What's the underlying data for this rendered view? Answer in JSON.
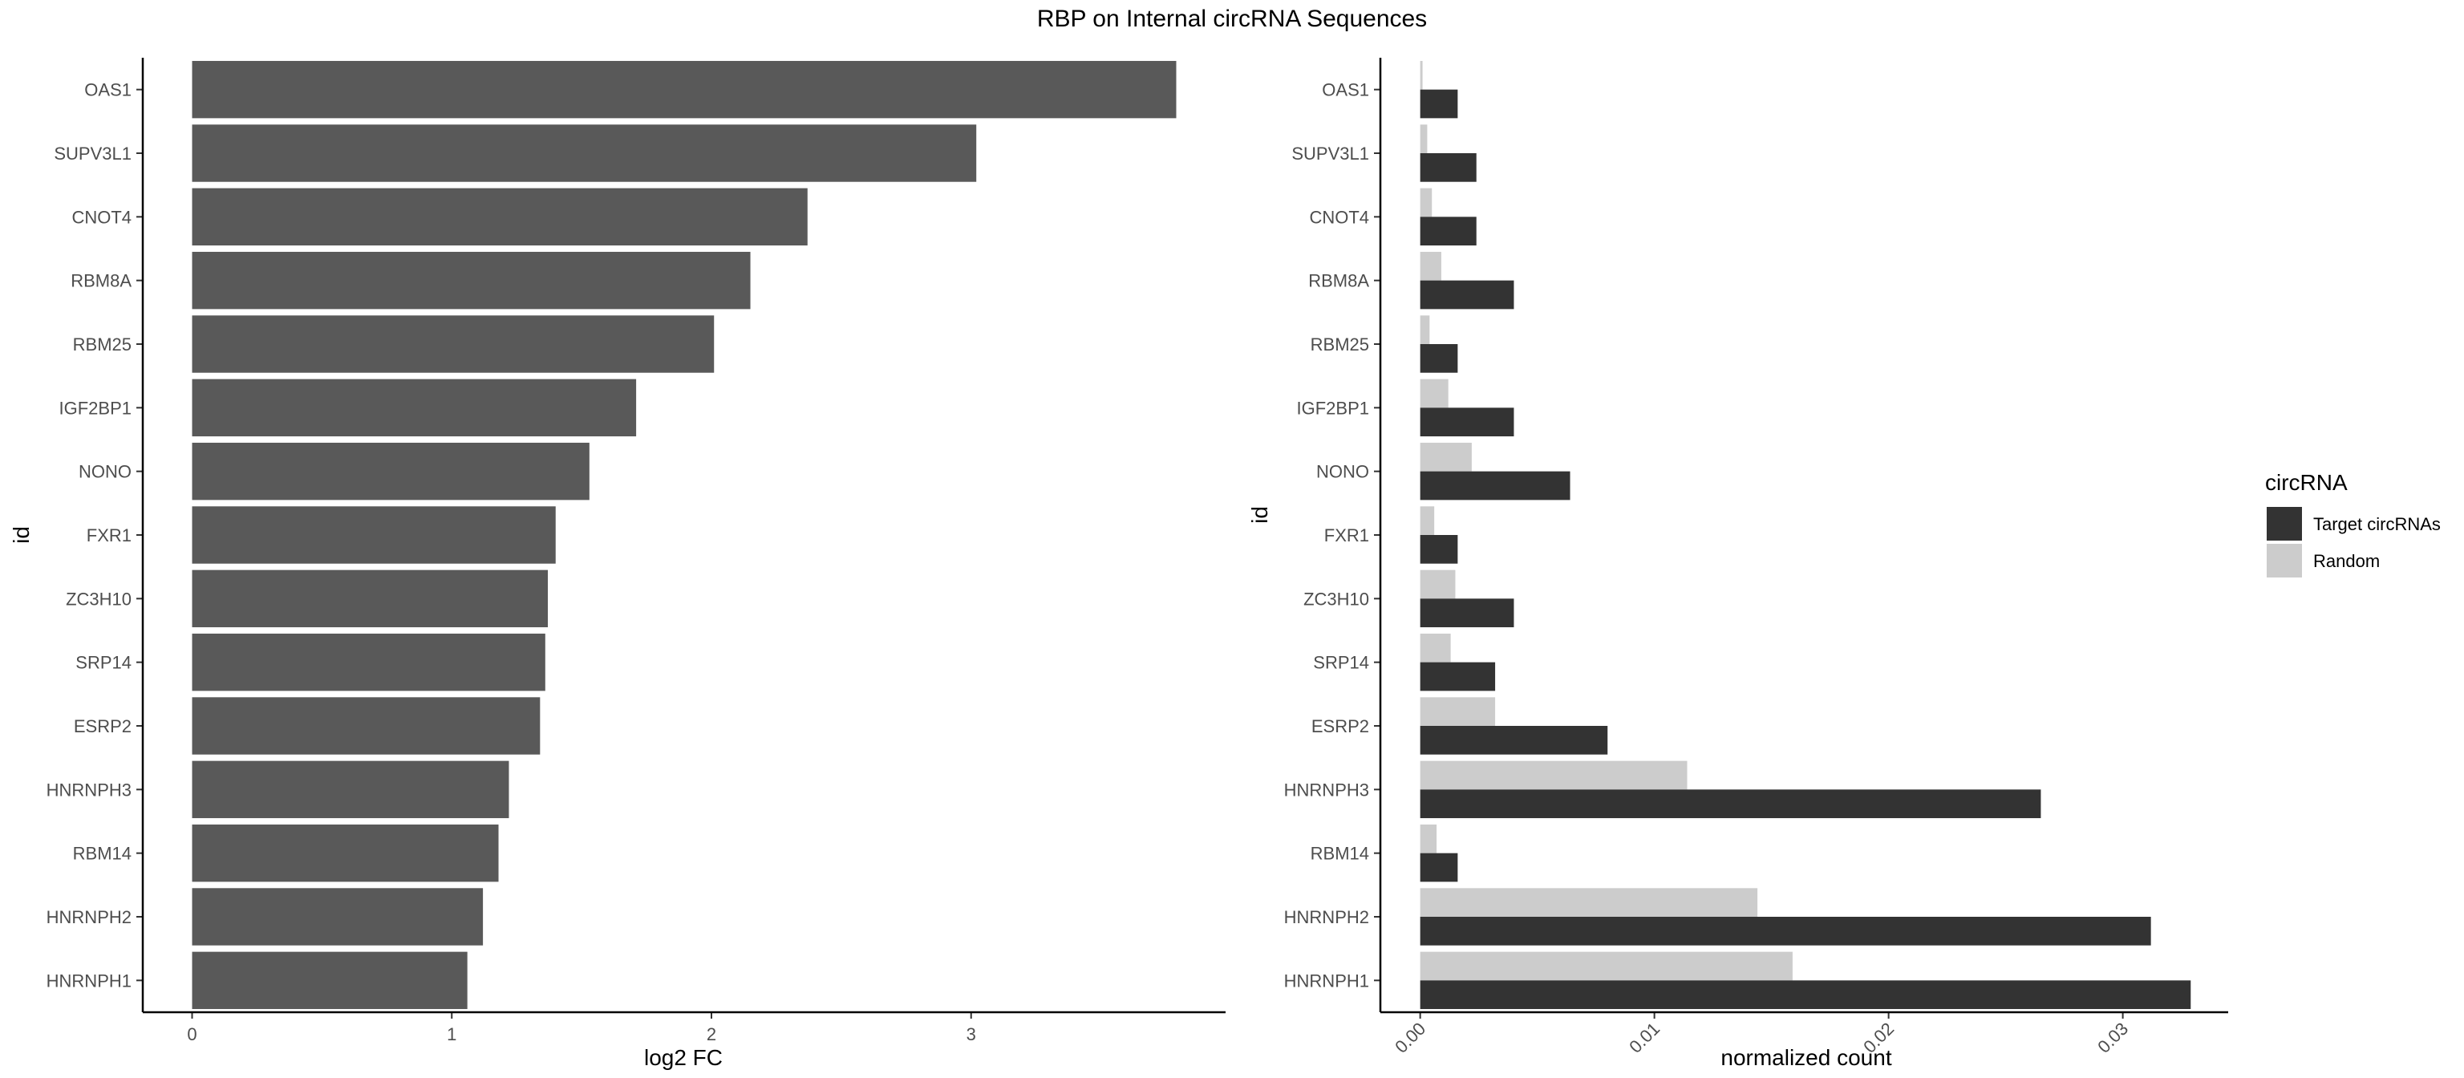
{
  "title": "RBP on Internal circRNA Sequences",
  "chart_data": [
    {
      "type": "bar",
      "orientation": "horizontal",
      "categories": [
        "OAS1",
        "SUPV3L1",
        "CNOT4",
        "RBM8A",
        "RBM25",
        "IGF2BP1",
        "NONO",
        "FXR1",
        "ZC3H10",
        "SRP14",
        "ESRP2",
        "HNRNPH3",
        "RBM14",
        "HNRNPH2",
        "HNRNPH1"
      ],
      "values": [
        3.79,
        3.02,
        2.37,
        2.15,
        2.01,
        1.71,
        1.53,
        1.4,
        1.37,
        1.36,
        1.34,
        1.22,
        1.18,
        1.12,
        1.06
      ],
      "xlabel": "log2 FC",
      "ylabel": "id",
      "xticks": [
        "0",
        "1",
        "2",
        "3"
      ],
      "xlim": [
        -0.19,
        3.98
      ],
      "grid": false,
      "bar_color": "#595959"
    },
    {
      "type": "bar",
      "orientation": "horizontal",
      "grouped": true,
      "categories": [
        "OAS1",
        "SUPV3L1",
        "CNOT4",
        "RBM8A",
        "RBM25",
        "IGF2BP1",
        "NONO",
        "FXR1",
        "ZC3H10",
        "SRP14",
        "ESRP2",
        "HNRNPH3",
        "RBM14",
        "HNRNPH2",
        "HNRNPH1"
      ],
      "series": [
        {
          "name": "Target circRNAs",
          "color": "#333333",
          "values": [
            0.0016,
            0.0024,
            0.0024,
            0.004,
            0.0016,
            0.004,
            0.0064,
            0.0016,
            0.004,
            0.0032,
            0.008,
            0.0265,
            0.0016,
            0.0312,
            0.0329
          ]
        },
        {
          "name": "Random",
          "color": "#cccccc",
          "values": [
            0.0001,
            0.0003,
            0.0005,
            0.0009,
            0.0004,
            0.0012,
            0.0022,
            0.0006,
            0.0015,
            0.0013,
            0.0032,
            0.0114,
            0.0007,
            0.0144,
            0.0159
          ]
        }
      ],
      "xlabel": "normalized count",
      "ylabel": "id",
      "xticks": [
        "0.00",
        "0.01",
        "0.02",
        "0.03"
      ],
      "xlim": [
        -0.0017,
        0.0345
      ],
      "grid": false,
      "legend": {
        "title": "circRNA",
        "position": "right"
      }
    }
  ]
}
